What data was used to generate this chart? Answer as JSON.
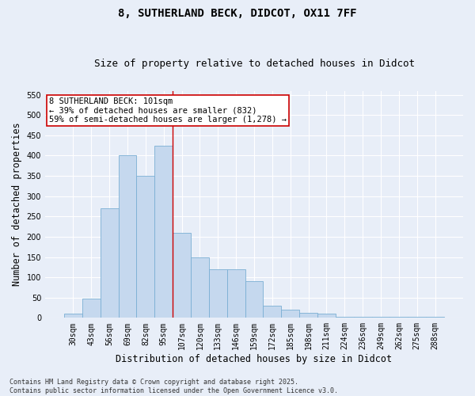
{
  "title_line1": "8, SUTHERLAND BECK, DIDCOT, OX11 7FF",
  "title_line2": "Size of property relative to detached houses in Didcot",
  "xlabel": "Distribution of detached houses by size in Didcot",
  "ylabel": "Number of detached properties",
  "bar_color": "#c5d8ee",
  "bar_edge_color": "#7aafd4",
  "categories": [
    "30sqm",
    "43sqm",
    "56sqm",
    "69sqm",
    "82sqm",
    "95sqm",
    "107sqm",
    "120sqm",
    "133sqm",
    "146sqm",
    "159sqm",
    "172sqm",
    "185sqm",
    "198sqm",
    "211sqm",
    "224sqm",
    "236sqm",
    "249sqm",
    "262sqm",
    "275sqm",
    "288sqm"
  ],
  "values": [
    10,
    48,
    270,
    400,
    350,
    425,
    210,
    150,
    120,
    120,
    90,
    30,
    20,
    12,
    10,
    2,
    2,
    2,
    2,
    2,
    2
  ],
  "ylim": [
    0,
    560
  ],
  "yticks": [
    0,
    50,
    100,
    150,
    200,
    250,
    300,
    350,
    400,
    450,
    500,
    550
  ],
  "vline_x": 5.5,
  "vline_color": "#cc0000",
  "annotation_text": "8 SUTHERLAND BECK: 101sqm\n← 39% of detached houses are smaller (832)\n59% of semi-detached houses are larger (1,278) →",
  "annotation_box_color": "#ffffff",
  "annotation_box_edge": "#cc0000",
  "annotation_fontsize": 7.5,
  "footer_text": "Contains HM Land Registry data © Crown copyright and database right 2025.\nContains public sector information licensed under the Open Government Licence v3.0.",
  "background_color": "#e8eef8",
  "grid_color": "#ffffff",
  "title_fontsize": 10,
  "subtitle_fontsize": 9,
  "tick_fontsize": 7,
  "label_fontsize": 8.5
}
